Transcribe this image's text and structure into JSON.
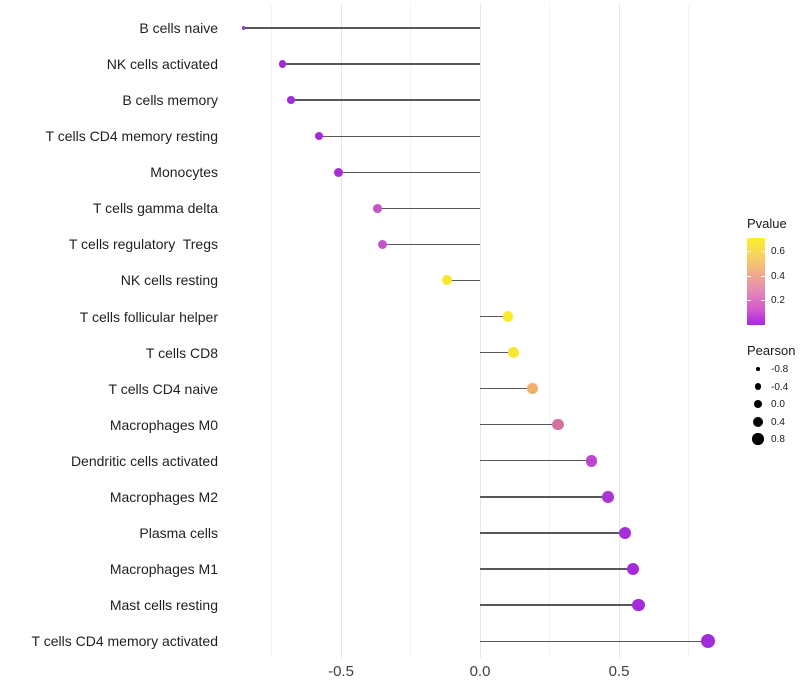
{
  "chart_data": {
    "type": "scatter",
    "variant": "lollipop",
    "title": "",
    "xlabel": "",
    "ylabel": "",
    "grid": true,
    "xlim": [
      -0.91,
      0.9
    ],
    "x_ticks": [
      {
        "value": -0.5,
        "label": "-0.5"
      },
      {
        "value": 0.0,
        "label": "0.0"
      },
      {
        "value": 0.5,
        "label": "0.5"
      }
    ],
    "x_minor_gridlines": [
      -0.75,
      -0.25,
      0.25,
      0.75
    ],
    "categories": [
      "B cells naive",
      "NK cells activated",
      "B cells memory",
      "T cells CD4 memory resting",
      "Monocytes",
      "T cells gamma delta",
      "T cells regulatory  Tregs",
      "NK cells resting",
      "T cells follicular helper",
      "T cells CD8",
      "T cells CD4 naive",
      "Macrophages M0",
      "Dendritic cells activated",
      "Macrophages M2",
      "Plasma cells",
      "Macrophages M1",
      "Mast cells resting",
      "T cells CD4 memory activated"
    ],
    "points": [
      {
        "category": "B cells naive",
        "pearson": -0.85,
        "pvalue_est": 0.001,
        "color": "#9632d6",
        "radius": 1.8
      },
      {
        "category": "NK cells activated",
        "pearson": -0.71,
        "pvalue_est": 0.001,
        "color": "#a32bd6",
        "radius": 3.8
      },
      {
        "category": "B cells memory",
        "pearson": -0.68,
        "pvalue_est": 0.001,
        "color": "#a32bd6",
        "radius": 3.9
      },
      {
        "category": "T cells CD4 memory resting",
        "pearson": -0.58,
        "pvalue_est": 0.005,
        "color": "#a32bd6",
        "radius": 4.2
      },
      {
        "category": "Monocytes",
        "pearson": -0.51,
        "pvalue_est": 0.01,
        "color": "#a52cd8",
        "radius": 4.5
      },
      {
        "category": "T cells gamma delta",
        "pearson": -0.37,
        "pvalue_est": 0.13,
        "color": "#c156c6",
        "radius": 4.4
      },
      {
        "category": "T cells regulatory  Tregs",
        "pearson": -0.35,
        "pvalue_est": 0.14,
        "color": "#c156c6",
        "radius": 4.5
      },
      {
        "category": "NK cells resting",
        "pearson": -0.12,
        "pvalue_est": 0.62,
        "color": "#f5e829",
        "radius": 5.0
      },
      {
        "category": "T cells follicular helper",
        "pearson": 0.1,
        "pvalue_est": 0.65,
        "color": "#f6ec2b",
        "radius": 5.3
      },
      {
        "category": "T cells CD8",
        "pearson": 0.12,
        "pvalue_est": 0.62,
        "color": "#f6e832",
        "radius": 5.3
      },
      {
        "category": "T cells CD4 naive",
        "pearson": 0.19,
        "pvalue_est": 0.41,
        "color": "#eeb06c",
        "radius": 5.4
      },
      {
        "category": "Macrophages M0",
        "pearson": 0.28,
        "pvalue_est": 0.25,
        "color": "#d4719f",
        "radius": 5.7
      },
      {
        "category": "Dendritic cells activated",
        "pearson": 0.4,
        "pvalue_est": 0.09,
        "color": "#bb46cf",
        "radius": 5.7
      },
      {
        "category": "Macrophages M2",
        "pearson": 0.46,
        "pvalue_est": 0.05,
        "color": "#ac35d6",
        "radius": 5.8
      },
      {
        "category": "Plasma cells",
        "pearson": 0.52,
        "pvalue_est": 0.02,
        "color": "#a82fd7",
        "radius": 6.0
      },
      {
        "category": "Macrophages M1",
        "pearson": 0.55,
        "pvalue_est": 0.01,
        "color": "#a52bd8",
        "radius": 6.2
      },
      {
        "category": "Mast cells resting",
        "pearson": 0.57,
        "pvalue_est": 0.01,
        "color": "#a52bd8",
        "radius": 6.3
      },
      {
        "category": "T cells CD4 memory activated",
        "pearson": 0.82,
        "pvalue_est": 0.001,
        "color": "#a22cda",
        "radius": 7.2
      }
    ],
    "legend_pvalue": {
      "title": "Pvalue",
      "range": [
        0,
        0.71
      ],
      "ticks": [
        {
          "value": 0.6,
          "label": "0.6"
        },
        {
          "value": 0.4,
          "label": "0.4"
        },
        {
          "value": 0.2,
          "label": "0.2"
        }
      ],
      "gradient_stops_top_to_bottom": [
        "#f9ef27",
        "#f6d35f",
        "#f0ae88",
        "#e68bb4",
        "#d45fcb",
        "#a928e2"
      ]
    },
    "legend_pearson": {
      "title": "Pearson",
      "entries": [
        {
          "label": "-0.8",
          "radius": 1.8
        },
        {
          "label": "-0.4",
          "radius": 3.3
        },
        {
          "label": "0.0",
          "radius": 4.3
        },
        {
          "label": "0.4",
          "radius": 5.0
        },
        {
          "label": "0.8",
          "radius": 5.7
        }
      ]
    },
    "style_colors": {
      "stem": "#585858",
      "grid_major": "#e7e7e7",
      "grid_minor": "#f3f3f3",
      "category_text": "#1f1f1f",
      "axis_text": "#404040"
    }
  }
}
